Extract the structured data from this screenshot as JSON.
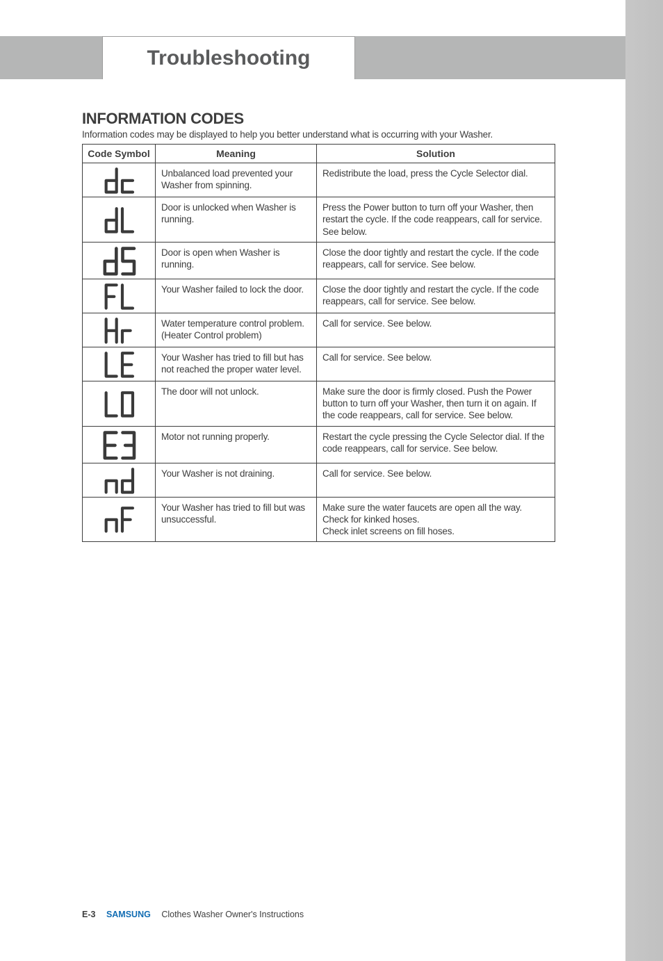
{
  "tab_title": "Troubleshooting",
  "section_title": "INFORMATION CODES",
  "intro": "Information codes may be displayed to help you better understand what is occurring with your Washer.",
  "columns": [
    "Code Symbol",
    "Meaning",
    "Solution"
  ],
  "rows": [
    {
      "symbol": "dc",
      "meaning": "Unbalanced load prevented your Washer from spinning.",
      "solution": "Redistribute the load, press the Cycle Selector dial."
    },
    {
      "symbol": "dL",
      "meaning": "Door is unlocked when Washer is running.",
      "solution": "Press the Power button to turn off your Washer, then restart the cycle. If the code reappears, call for service. See below."
    },
    {
      "symbol": "dS",
      "meaning": "Door is open when Washer is running.",
      "solution": "Close the door tightly and restart the cycle. If the code reappears, call for service. See below."
    },
    {
      "symbol": "FL",
      "meaning": "Your Washer failed to lock the door.",
      "solution": "Close the door tightly and restart the cycle. If the code reappears, call for service. See below."
    },
    {
      "symbol": "Hr",
      "meaning": "Water temperature control problem.\n(Heater Control problem)",
      "solution": "Call for service. See below."
    },
    {
      "symbol": "LE",
      "meaning": "Your Washer has tried to fill but has not reached the proper water level.",
      "solution": "Call for service. See below."
    },
    {
      "symbol": "LO",
      "meaning": "The door will not unlock.",
      "solution": "Make sure the door is firmly closed. Push the Power button to turn off your Washer, then turn it on again. If the code reappears, call for service. See below."
    },
    {
      "symbol": "E3",
      "meaning": "Motor not running properly.",
      "solution": "Restart the cycle pressing the Cycle Selector dial. If the code reappears, call for service. See below."
    },
    {
      "symbol": "nd",
      "meaning": "Your Washer is not draining.",
      "solution": "Call for service. See below."
    },
    {
      "symbol": "nF",
      "meaning": "Your Washer has tried to fill but was unsuccessful.",
      "solution": "Make sure the water faucets are open all the way. Check for kinked hoses.\nCheck inlet screens on fill hoses."
    }
  ],
  "footer": {
    "page": "E-3",
    "brand": "SAMSUNG",
    "doc": "Clothes Washer Owner's Instructions"
  },
  "svg_defs": {
    "stroke": "#3a3a3a",
    "stroke_width": 5
  }
}
